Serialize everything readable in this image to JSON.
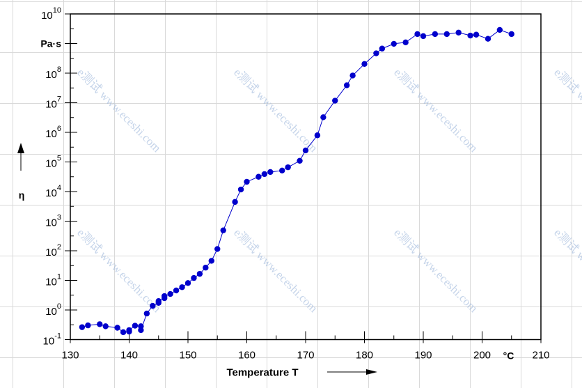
{
  "chart_data": {
    "type": "line",
    "title": "",
    "xlabel": "Temperature  T",
    "ylabel": "η",
    "x_unit": "°C",
    "y_unit": "Pa·s",
    "yscale": "log",
    "xlim": [
      130,
      210
    ],
    "ylim_exp": [
      -1,
      10
    ],
    "x_ticks": [
      "130",
      "140",
      "150",
      "160",
      "170",
      "180",
      "190",
      "200",
      "210"
    ],
    "y_ticks": [
      -1,
      0,
      1,
      2,
      3,
      4,
      5,
      6,
      7,
      8,
      10
    ],
    "series": [
      {
        "name": "η",
        "color": "#0000cc",
        "x": [
          132,
          133,
          135,
          136,
          138,
          139,
          140,
          140,
          141,
          142,
          142,
          143,
          144,
          145,
          145,
          146,
          146,
          147,
          148,
          149,
          150,
          151,
          152,
          153,
          154,
          155,
          156,
          158,
          159,
          160,
          162,
          163,
          164,
          166,
          167,
          169,
          170,
          172,
          173,
          175,
          177,
          178,
          180,
          182,
          183,
          185,
          187,
          189,
          190,
          192,
          194,
          196,
          198,
          199,
          201,
          203,
          205
        ],
        "log10_y": [
          -0.58,
          -0.52,
          -0.48,
          -0.55,
          -0.6,
          -0.75,
          -0.73,
          -0.68,
          -0.53,
          -0.55,
          -0.68,
          -0.12,
          0.14,
          0.24,
          0.3,
          0.4,
          0.47,
          0.54,
          0.66,
          0.77,
          0.91,
          1.08,
          1.22,
          1.43,
          1.66,
          2.06,
          2.69,
          3.65,
          4.07,
          4.33,
          4.5,
          4.59,
          4.66,
          4.71,
          4.82,
          5.04,
          5.39,
          5.9,
          6.51,
          7.07,
          7.59,
          7.92,
          8.31,
          8.67,
          8.83,
          8.99,
          9.04,
          9.32,
          9.25,
          9.32,
          9.32,
          9.37,
          9.27,
          9.3,
          9.16,
          9.46,
          9.32
        ]
      }
    ],
    "watermark": "e测试 www.eceshi.com",
    "grid": false
  }
}
